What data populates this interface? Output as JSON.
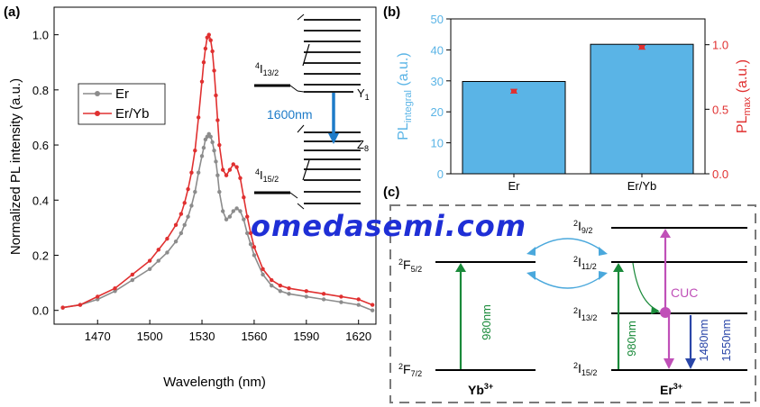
{
  "chart_data": [
    {
      "panel": "(a)",
      "type": "line",
      "xlabel": "Wavelength (nm)",
      "ylabel": "Normalized PL intensity (a.u.)",
      "xlim": [
        1445,
        1630
      ],
      "ylim": [
        -0.05,
        1.1
      ],
      "xticks": [
        "1470",
        "1500",
        "1530",
        "1560",
        "1590",
        "1620"
      ],
      "yticks": [
        "0.0",
        "0.2",
        "0.4",
        "0.6",
        "0.8",
        "1.0"
      ],
      "legend_position": "upper-left",
      "series": [
        {
          "name": "Er",
          "color": "#8c8c8c",
          "x": [
            1450,
            1460,
            1470,
            1480,
            1490,
            1500,
            1505,
            1510,
            1515,
            1518,
            1520,
            1522,
            1524,
            1526,
            1528,
            1530,
            1531,
            1532,
            1533,
            1534,
            1535,
            1536,
            1537,
            1538,
            1539,
            1540,
            1542,
            1544,
            1546,
            1548,
            1550,
            1552,
            1554,
            1556,
            1558,
            1560,
            1565,
            1570,
            1575,
            1580,
            1590,
            1600,
            1610,
            1620,
            1628
          ],
          "y": [
            0.01,
            0.02,
            0.04,
            0.07,
            0.11,
            0.15,
            0.18,
            0.21,
            0.25,
            0.28,
            0.31,
            0.34,
            0.38,
            0.43,
            0.5,
            0.56,
            0.59,
            0.62,
            0.63,
            0.64,
            0.63,
            0.61,
            0.58,
            0.54,
            0.49,
            0.43,
            0.36,
            0.33,
            0.34,
            0.36,
            0.37,
            0.36,
            0.33,
            0.28,
            0.24,
            0.2,
            0.13,
            0.09,
            0.07,
            0.06,
            0.05,
            0.04,
            0.03,
            0.02,
            0.0
          ]
        },
        {
          "name": "Er/Yb",
          "color": "#e03030",
          "x": [
            1450,
            1460,
            1470,
            1480,
            1490,
            1500,
            1505,
            1510,
            1515,
            1518,
            1520,
            1522,
            1524,
            1526,
            1528,
            1530,
            1531,
            1532,
            1533,
            1534,
            1535,
            1536,
            1537,
            1538,
            1539,
            1540,
            1542,
            1544,
            1546,
            1548,
            1550,
            1552,
            1554,
            1556,
            1558,
            1560,
            1565,
            1570,
            1575,
            1580,
            1590,
            1600,
            1610,
            1620,
            1628
          ],
          "y": [
            0.01,
            0.02,
            0.05,
            0.08,
            0.13,
            0.18,
            0.22,
            0.26,
            0.31,
            0.35,
            0.39,
            0.44,
            0.5,
            0.58,
            0.7,
            0.83,
            0.9,
            0.95,
            0.99,
            1.0,
            0.98,
            0.94,
            0.87,
            0.78,
            0.69,
            0.6,
            0.51,
            0.49,
            0.51,
            0.53,
            0.52,
            0.48,
            0.41,
            0.34,
            0.28,
            0.23,
            0.15,
            0.11,
            0.09,
            0.08,
            0.07,
            0.06,
            0.05,
            0.04,
            0.02
          ]
        }
      ],
      "inset": {
        "upper_level": "4I13/2",
        "lower_level": "4I15/2",
        "upper_sublevel": "Y1",
        "lower_sublevel": "Z8",
        "transition": "1600nm",
        "arrow_color": "#1e7bc8"
      }
    },
    {
      "panel": "(b)",
      "type": "bar",
      "categories": [
        "Er",
        "Er/Yb"
      ],
      "values": [
        29.8,
        41.8
      ],
      "bar_color": "#5ab4e6",
      "ylabel_left": "PL integral (a.u.)",
      "ylim_left": [
        0,
        50
      ],
      "yticks_left": [
        "0",
        "10",
        "20",
        "30",
        "40",
        "50"
      ],
      "ylabel_right": "PL max (a.u.)",
      "ylim_right": [
        0,
        1.2
      ],
      "yticks_right": [
        "0.0",
        "0.5",
        "1.0"
      ],
      "right_series": {
        "values": [
          0.64,
          0.98
        ],
        "errors": [
          0.015,
          0.015
        ],
        "color": "#e03030"
      }
    }
  ],
  "diagram": {
    "panel": "(c)",
    "yb_label": "Yb3+",
    "er_label": "Er3+",
    "yb_levels": [
      "2F5/2",
      "2F7/2"
    ],
    "er_levels": [
      "2I9/2",
      "2I11/2",
      "2I13/2",
      "2I15/2"
    ],
    "yb_pump": "980nm",
    "er_pump": "980nm",
    "cuc_label": "CUC",
    "emission_1": "1480nm",
    "emission_2": "1550nm",
    "colors": {
      "pump": "#1a8a3a",
      "cuc": "#c050b8",
      "emission_1": "#2a46a8",
      "emission_2": "#2a46a8",
      "transfer": "#4aa8dc",
      "cuc_label": "#c050b8",
      "emission_label": "#2a46a8"
    }
  },
  "watermark": "omedasemi.com",
  "panel_labels": {
    "a": "(a)",
    "b": "(b)",
    "c": "(c)"
  }
}
